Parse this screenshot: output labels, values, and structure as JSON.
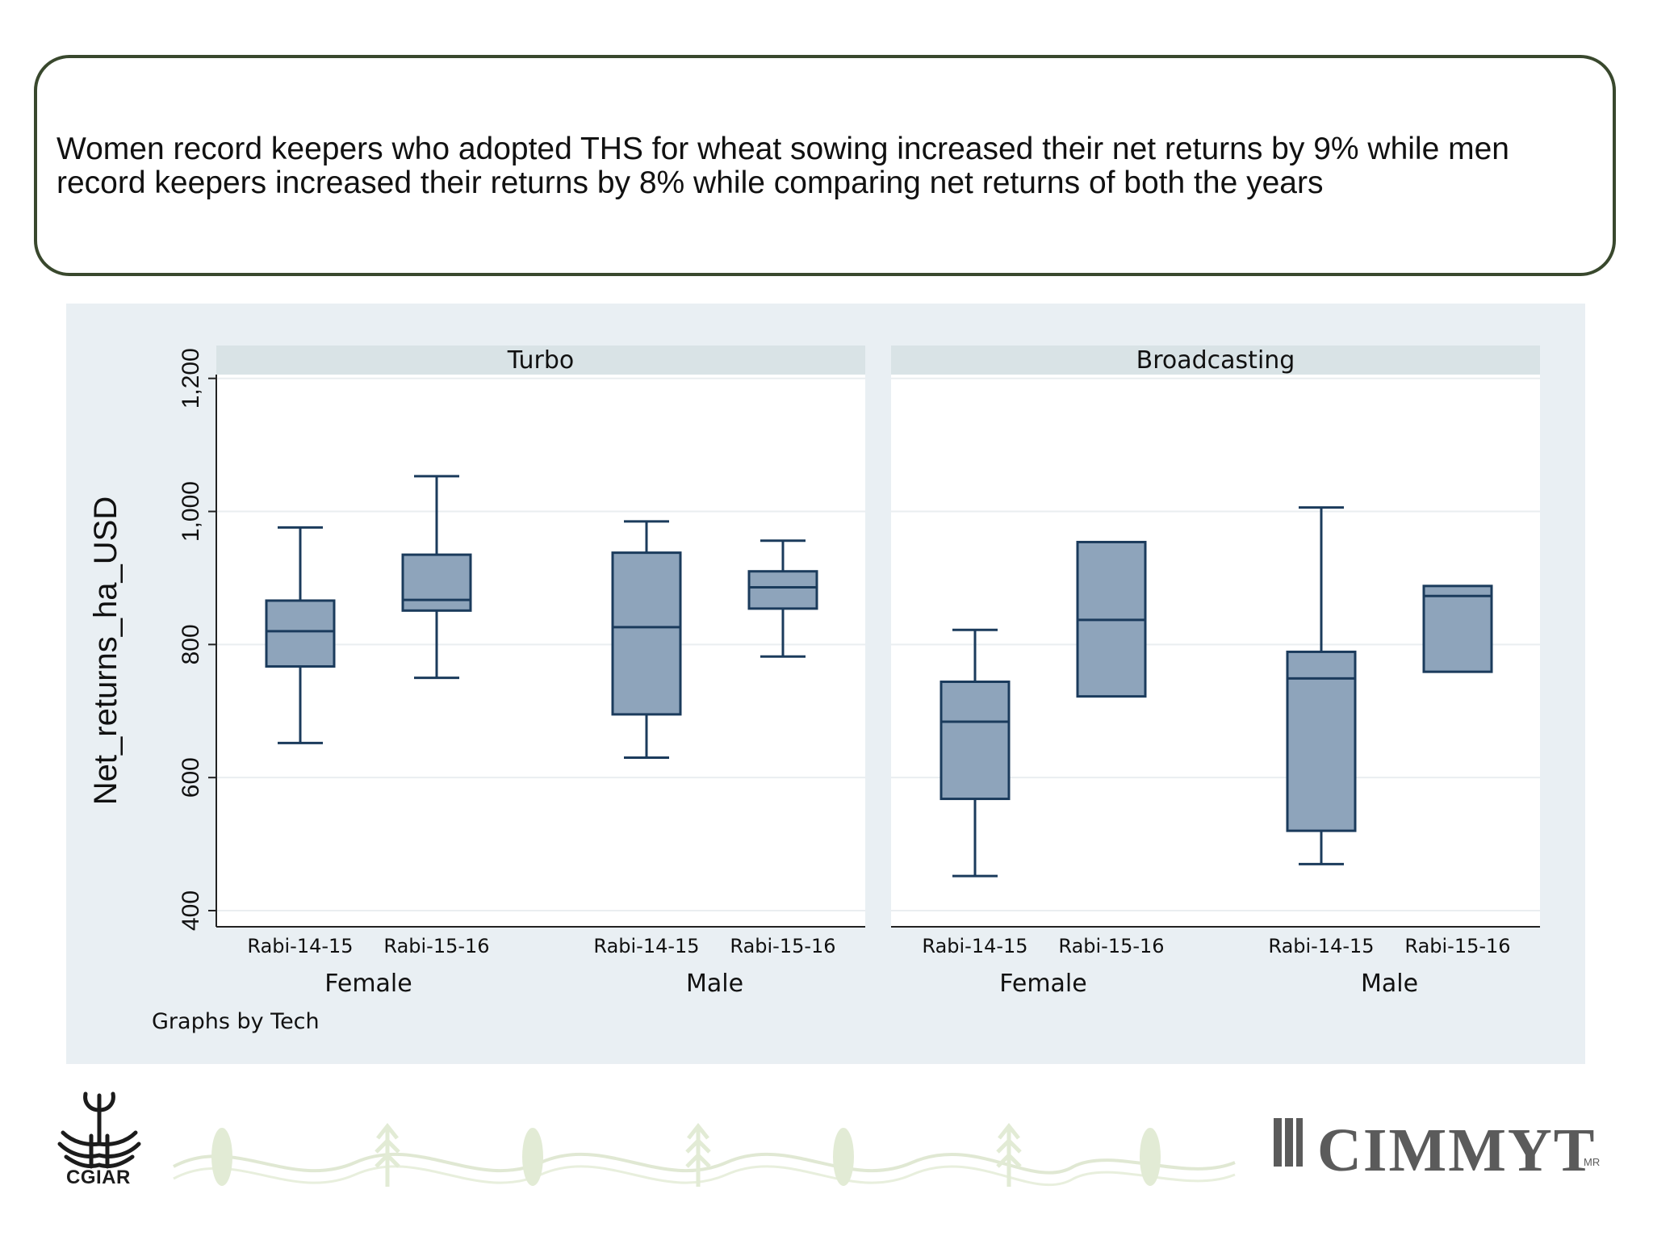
{
  "slide": {
    "callout_text": "Women record keepers who adopted THS for wheat sowing increased their net returns by 9% while men record keepers increased their returns by 8% while comparing net returns of both the years"
  },
  "chart_data": {
    "type": "boxplot",
    "ylabel": "Net_returns_ha_USD",
    "ylim": [
      400,
      1230
    ],
    "yticks": [
      400,
      600,
      800,
      1000,
      1200
    ],
    "ytick_labels": [
      "400",
      "600",
      "800",
      "1,000",
      "1,200"
    ],
    "note": "Graphs by Tech",
    "grid": true,
    "colors": {
      "box_fill": "#8ea4bb",
      "box_stroke": "#1b3b5c",
      "panel_bg": "#e9eff3",
      "header_bg": "#d9e3e6"
    },
    "panels": [
      {
        "title": "Turbo",
        "groups": [
          {
            "name": "Female",
            "boxes": [
              {
                "label": "Rabi-14-15",
                "min": 652,
                "q1": 767,
                "median": 820,
                "q3": 866,
                "max": 976
              },
              {
                "label": "Rabi-15-16",
                "min": 750,
                "q1": 851,
                "median": 867,
                "q3": 935,
                "max": 1053
              }
            ]
          },
          {
            "name": "Male",
            "boxes": [
              {
                "label": "Rabi-14-15",
                "min": 630,
                "q1": 695,
                "median": 826,
                "q3": 938,
                "max": 985
              },
              {
                "label": "Rabi-15-16",
                "min": 782,
                "q1": 854,
                "median": 886,
                "q3": 910,
                "max": 956
              }
            ]
          }
        ]
      },
      {
        "title": "Broadcasting",
        "groups": [
          {
            "name": "Female",
            "boxes": [
              {
                "label": "Rabi-14-15",
                "min": 452,
                "q1": 568,
                "median": 684,
                "q3": 744,
                "max": 822
              },
              {
                "label": "Rabi-15-16",
                "min": 722,
                "q1": 722,
                "median": 837,
                "q3": 954,
                "max": 954
              }
            ]
          },
          {
            "name": "Male",
            "boxes": [
              {
                "label": "Rabi-14-15",
                "min": 470,
                "q1": 520,
                "median": 749,
                "q3": 789,
                "max": 1006
              },
              {
                "label": "Rabi-15-16",
                "min": 759,
                "q1": 759,
                "median": 873,
                "q3": 888,
                "max": 888
              }
            ]
          }
        ]
      }
    ]
  },
  "footer": {
    "left_logo_text": "CGIAR",
    "right_logo_text": "CIMMYT",
    "right_logo_mark": "MR",
    "decoration": "wheat-and-maize-banner"
  }
}
